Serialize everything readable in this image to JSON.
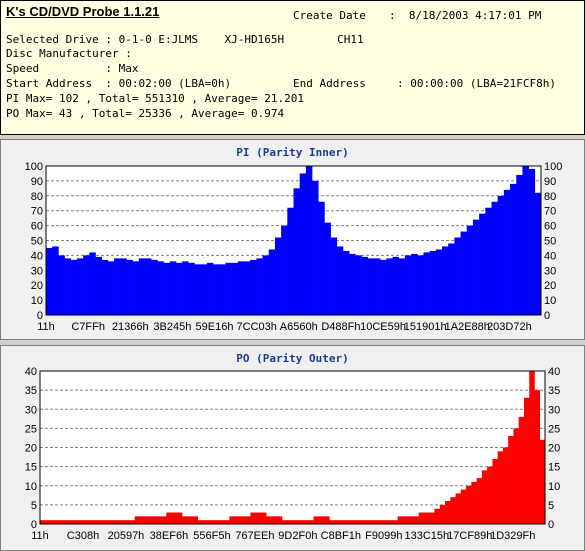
{
  "app": {
    "title": "K's CD/DVD Probe 1.1.21"
  },
  "info": {
    "create_date_label": "Create Date",
    "create_date_value": ":  8/18/2003 4:17:01 PM",
    "selected_drive": "Selected Drive : 0-1-0 E:JLMS    XJ-HD165H        CH11",
    "disc_manufacturer": "Disc Manufacturer :",
    "speed": "Speed          : Max",
    "start_address": "Start Address  : 00:02:00 (LBA=0h)",
    "end_address_label": "End Address",
    "end_address_value": ": 00:00:00 (LBA=21FCF8h)",
    "pi_summary": "PI Max= 102 , Total= 551310 , Average= 21.201",
    "po_summary": "PO Max= 43 , Total= 25336 , Average= 0.974"
  },
  "colors": {
    "pi": "#0000ff",
    "po": "#ff0000",
    "background": "#d4d0c8",
    "info_bg": "#ffffe1",
    "title": "#1a3a9a"
  },
  "chart_data": [
    {
      "type": "area",
      "title": "PI (Parity Inner)",
      "x_ticks": [
        "11h",
        "C7FFh",
        "21366h",
        "3B245h",
        "59E16h",
        "7CC03h",
        "A6560h",
        "D488Fh",
        "10CE59h",
        "151901h",
        "1A2E88h",
        "203D72h"
      ],
      "ylim": [
        0,
        100
      ],
      "y_ticks": [
        0,
        10,
        20,
        30,
        40,
        50,
        60,
        70,
        80,
        90,
        100
      ],
      "grid": true,
      "series": [
        {
          "values": [
            45,
            46,
            40,
            38,
            37,
            38,
            40,
            42,
            39,
            37,
            36,
            38,
            38,
            37,
            36,
            38,
            38,
            37,
            36,
            35,
            36,
            35,
            36,
            35,
            34,
            34,
            35,
            34,
            34,
            35,
            35,
            36,
            36,
            37,
            38,
            40,
            44,
            52,
            60,
            72,
            85,
            95,
            100,
            90,
            76,
            62,
            52,
            46,
            43,
            41,
            40,
            39,
            38,
            38,
            37,
            38,
            39,
            38,
            40,
            41,
            40,
            42,
            43,
            44,
            46,
            48,
            52,
            56,
            60,
            64,
            68,
            72,
            76,
            80,
            84,
            88,
            94,
            100,
            98,
            82
          ]
        }
      ]
    },
    {
      "type": "area",
      "title": "PO (Parity Outer)",
      "x_ticks": [
        "11h",
        "C308h",
        "20597h",
        "38EF6h",
        "556F5h",
        "767EEh",
        "9D2F0h",
        "C8BF1h",
        "F9099h",
        "133C15h",
        "17CF89h",
        "1D329Fh"
      ],
      "ylim": [
        0,
        40
      ],
      "y_ticks": [
        0,
        5,
        10,
        15,
        20,
        25,
        30,
        35,
        40
      ],
      "grid": true,
      "series": [
        {
          "values": [
            1,
            1,
            1,
            1,
            1,
            1,
            1,
            1,
            1,
            1,
            1,
            1,
            1,
            1,
            1,
            1,
            1,
            1,
            2,
            2,
            2,
            2,
            2,
            2,
            3,
            3,
            3,
            2,
            2,
            2,
            1,
            1,
            1,
            1,
            1,
            1,
            2,
            2,
            2,
            2,
            3,
            3,
            3,
            2,
            2,
            2,
            1,
            1,
            1,
            1,
            1,
            1,
            2,
            2,
            2,
            1,
            1,
            1,
            1,
            1,
            1,
            1,
            1,
            1,
            1,
            1,
            1,
            1,
            2,
            2,
            2,
            2,
            3,
            3,
            3,
            4,
            5,
            6,
            7,
            8,
            9,
            10,
            11,
            12,
            14,
            15,
            17,
            19,
            20,
            23,
            25,
            28,
            33,
            43,
            35,
            22
          ]
        }
      ]
    }
  ]
}
